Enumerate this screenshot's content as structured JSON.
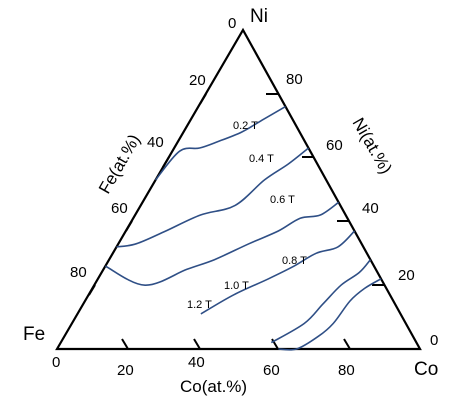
{
  "chart_data": {
    "type": "ternary-contour",
    "title": "",
    "vertices": {
      "top": "Ni",
      "left": "Fe",
      "right": "Co"
    },
    "axes": {
      "co": {
        "title": "Co(at.%)",
        "ticks": [
          "0",
          "20",
          "40",
          "60",
          "80"
        ],
        "tick_values": [
          0,
          20,
          40,
          60,
          80
        ]
      },
      "ni": {
        "title": "Ni(at.%)",
        "ticks": [
          "80",
          "60",
          "40",
          "20",
          "0"
        ],
        "tick_values": [
          80,
          60,
          40,
          20,
          0
        ]
      },
      "fe": {
        "title": "Fe(at.%)",
        "ticks": [
          "0",
          "20",
          "40",
          "60",
          "80"
        ],
        "tick_values": [
          0,
          20,
          40,
          60,
          80
        ]
      }
    },
    "line_color": "#2f4f86",
    "contours": [
      {
        "label": "0.2 T",
        "points": [
          [
            78,
            0
          ],
          [
            75,
            6
          ],
          [
            73,
            12
          ],
          [
            72,
            20
          ],
          [
            70,
            26
          ],
          [
            66,
            34
          ],
          [
            61,
            39
          ]
        ]
      },
      {
        "label": "0.4 T",
        "points": [
          [
            72,
            0
          ],
          [
            71,
            5
          ],
          [
            68,
            12
          ],
          [
            66,
            20
          ],
          [
            64,
            28
          ],
          [
            58,
            40
          ]
        ]
      },
      {
        "label": "0.6 T",
        "points": [
          [
            63,
            0
          ],
          [
            61,
            7
          ],
          [
            56,
            14
          ],
          [
            52,
            22
          ],
          [
            47,
            31
          ],
          [
            40,
            43
          ],
          [
            34,
            55
          ]
        ]
      },
      {
        "label": "0.8 T",
        "points": [
          [
            54,
            0
          ],
          [
            51,
            7
          ],
          [
            46,
            13
          ],
          [
            42,
            21
          ],
          [
            36,
            31
          ],
          [
            29,
            43
          ],
          [
            23,
            52
          ],
          [
            14,
            66
          ],
          [
            0,
            74
          ]
        ]
      },
      {
        "label": "1.0 T",
        "points": [
          [
            37,
            0
          ],
          [
            34,
            8
          ],
          [
            30,
            17
          ],
          [
            26,
            29
          ],
          [
            18,
            40
          ],
          [
            11,
            52
          ],
          [
            5,
            62
          ],
          [
            0,
            68
          ]
        ]
      },
      {
        "label": "1.2 T",
        "points": [
          [
            24,
            0
          ],
          [
            20,
            8
          ],
          [
            16,
            16
          ],
          [
            11,
            24
          ],
          [
            7,
            30
          ],
          [
            2,
            36
          ],
          [
            0,
            47
          ]
        ]
      }
    ]
  }
}
